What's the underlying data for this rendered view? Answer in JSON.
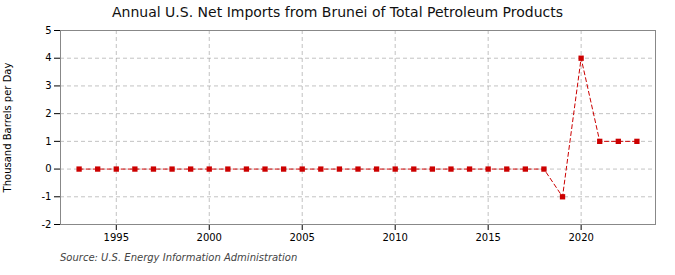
{
  "chart_data": {
    "type": "line",
    "title": "Annual U.S. Net Imports from Brunei of Total Petroleum Products",
    "ylabel": "Thousand Barrels per Day",
    "source": "Source: U.S. Energy Information Administration",
    "x": [
      1993,
      1994,
      1995,
      1996,
      1997,
      1998,
      1999,
      2000,
      2001,
      2002,
      2003,
      2004,
      2005,
      2006,
      2007,
      2008,
      2009,
      2010,
      2011,
      2012,
      2013,
      2014,
      2015,
      2016,
      2017,
      2018,
      2019,
      2020,
      2021,
      2022,
      2023
    ],
    "values": [
      0,
      0,
      0,
      0,
      0,
      0,
      0,
      0,
      0,
      0,
      0,
      0,
      0,
      0,
      0,
      0,
      0,
      0,
      0,
      0,
      0,
      0,
      0,
      0,
      0,
      0,
      -1,
      4,
      1,
      1,
      1
    ],
    "color": "#cc0000",
    "marker": "square",
    "line_style": "dashed",
    "xlim": [
      1992,
      2024
    ],
    "xticks": [
      1995,
      2000,
      2005,
      2010,
      2015,
      2020
    ],
    "ylim": [
      -2,
      5
    ],
    "yticks": [
      -2,
      -1,
      0,
      1,
      2,
      3,
      4,
      5
    ],
    "grid": true
  }
}
